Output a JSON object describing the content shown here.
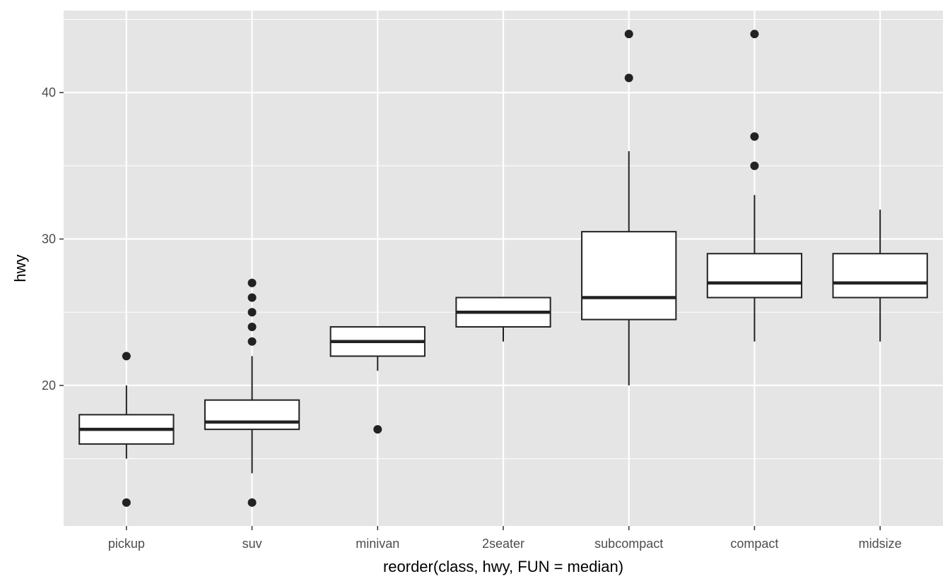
{
  "chart_data": {
    "type": "boxplot",
    "title": "",
    "xlabel": "reorder(class, hwy, FUN = median)",
    "ylabel": "hwy",
    "ylim": [
      10.4,
      45.6
    ],
    "yticks": [
      20,
      30,
      40
    ],
    "grid": true,
    "colors": {
      "panel": "#e5e5e5",
      "grid": "#ffffff",
      "box_fill": "#ffffff",
      "stroke": "#222222"
    },
    "categories": [
      "pickup",
      "suv",
      "minivan",
      "2seater",
      "subcompact",
      "compact",
      "midsize"
    ],
    "boxes": [
      {
        "lower": 15,
        "q1": 16,
        "median": 17,
        "q3": 18,
        "upper": 20,
        "outliers": [
          12,
          22
        ]
      },
      {
        "lower": 14,
        "q1": 17,
        "median": 17.5,
        "q3": 19,
        "upper": 22,
        "outliers": [
          12,
          23,
          24,
          25,
          26,
          27
        ]
      },
      {
        "lower": 21,
        "q1": 22,
        "median": 23,
        "q3": 24,
        "upper": 24,
        "outliers": [
          17
        ]
      },
      {
        "lower": 23,
        "q1": 24,
        "median": 25,
        "q3": 26,
        "upper": 26,
        "outliers": []
      },
      {
        "lower": 20,
        "q1": 24.5,
        "median": 26,
        "q3": 30.5,
        "upper": 36,
        "outliers": [
          41,
          44
        ]
      },
      {
        "lower": 23,
        "q1": 26,
        "median": 27,
        "q3": 29,
        "upper": 33,
        "outliers": [
          35,
          37,
          44
        ]
      },
      {
        "lower": 23,
        "q1": 26,
        "median": 27,
        "q3": 29,
        "upper": 32,
        "outliers": []
      }
    ]
  }
}
